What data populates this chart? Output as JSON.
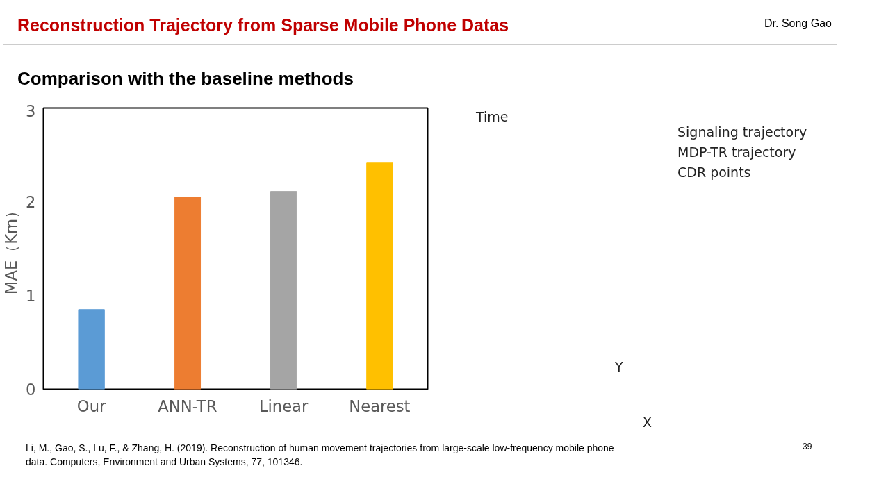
{
  "chart_data": {
    "type": "bar",
    "title": "Reconstruction Trajectory from Sparse Mobile Phone Datas",
    "subtitle": "Comparison with the baseline methods",
    "ylabel": "MAE（Km）",
    "categories": [
      "Our",
      "ANN-TR",
      "Linear",
      "Nearest"
    ],
    "values": [
      0.85,
      2.05,
      2.11,
      2.42
    ],
    "colors": [
      "#5b9bd5",
      "#ed7d31",
      "#a5a5a5",
      "#ffc000"
    ],
    "ylim": [
      0,
      3
    ],
    "yticks": [
      0,
      1,
      2,
      3
    ],
    "grid": false,
    "annotations": [
      "Dr. Song Gao",
      "Time",
      "Y",
      "X",
      "Signaling trajectory",
      "MDP-TR trajectory",
      "CDR points",
      "Li, M., Gao, S., Lu, F., & Zhang, H. (2019). Reconstruction of human movement trajectories from large-scale low-frequency mobile phone data. Computers, Environment and Urban Systems, 77, 101346.",
      "39"
    ]
  }
}
